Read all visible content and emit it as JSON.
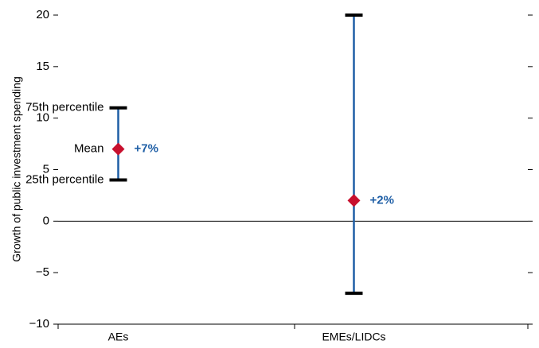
{
  "chart_data": {
    "type": "range",
    "y_label": "Growth of public investment spending",
    "categories": [
      "AEs",
      "EMEs/LIDCs"
    ],
    "low": [
      4,
      -7
    ],
    "high": [
      11,
      20
    ],
    "mean": [
      7,
      2
    ],
    "value_labels": [
      "+7%",
      "+2%"
    ],
    "annotations": {
      "high": "75th percentile",
      "mean": "Mean",
      "low": "25th percentile"
    },
    "line_color": "#1f5fa6",
    "mean_color": "#c8102e",
    "cap_color": "#000000",
    "label_color": "#1f5fa6",
    "ylim": [
      -10,
      20
    ],
    "yticks": [
      {
        "value": -10,
        "label": "−10"
      },
      {
        "value": -5,
        "label": "−5"
      },
      0,
      5,
      10,
      15,
      20
    ]
  }
}
